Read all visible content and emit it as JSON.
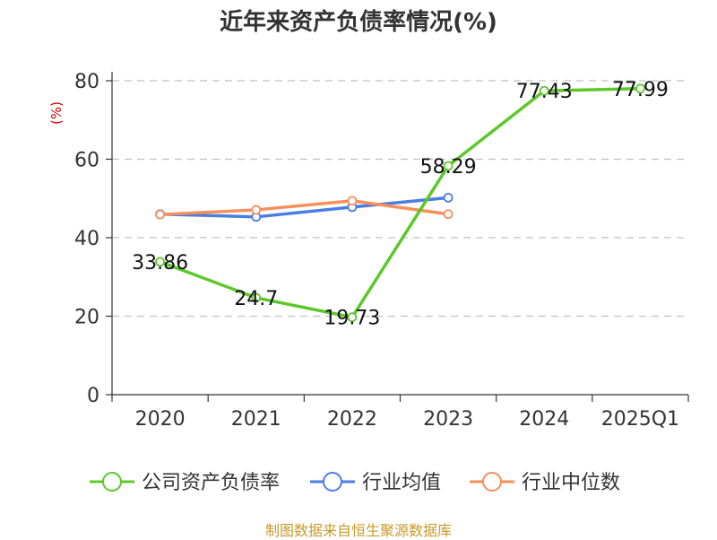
{
  "chart_data": {
    "type": "line",
    "title": "近年来资产负债率情况(%)",
    "ylabel": "(%)",
    "categories": [
      "2020",
      "2021",
      "2022",
      "2023",
      "2024",
      "2025Q1"
    ],
    "ylim": [
      0,
      80
    ],
    "yticks": [
      0,
      20,
      40,
      60,
      80
    ],
    "grid": true,
    "legend_position": "bottom",
    "series": [
      {
        "name": "公司资产负债率",
        "color": "#5cc82a",
        "values": [
          33.86,
          24.7,
          19.73,
          58.29,
          77.43,
          77.99
        ],
        "labels": [
          "33.86",
          "24.7",
          "19.73",
          "58.29",
          "77.43",
          "77.99"
        ]
      },
      {
        "name": "行业均值",
        "color": "#4a7ee0",
        "values": [
          46.0,
          45.3,
          47.8,
          50.2,
          null,
          null
        ]
      },
      {
        "name": "行业中位数",
        "color": "#f5905a",
        "values": [
          45.9,
          47.1,
          49.4,
          46.0,
          null,
          null
        ]
      }
    ]
  },
  "source": "制图数据来自恒生聚源数据库"
}
